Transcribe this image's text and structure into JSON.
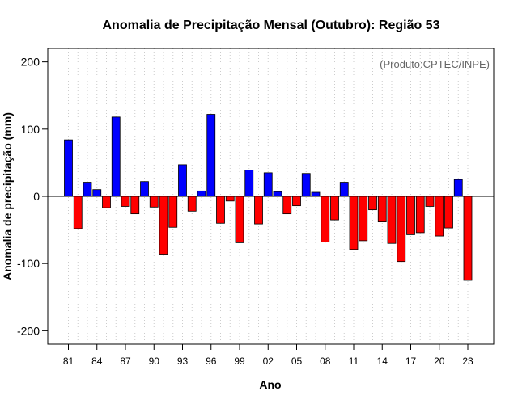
{
  "chart_data": {
    "type": "bar",
    "title": "Anomalia de Precipitação Mensal (Outubro): Região 53",
    "xlabel": "Ano",
    "ylabel": "Anomalia de precipitação (mm)",
    "credit": "(Produto:CPTEC/INPE)",
    "ylim": [
      -220,
      220
    ],
    "yticks": [
      200,
      100,
      0,
      -100,
      -200
    ],
    "xtick_labels": [
      "81",
      "84",
      "87",
      "90",
      "93",
      "96",
      "99",
      "02",
      "05",
      "08",
      "11",
      "14",
      "17",
      "20",
      "23"
    ],
    "grid": "vertical dotted",
    "years": [
      1981,
      1982,
      1983,
      1984,
      1985,
      1986,
      1987,
      1988,
      1989,
      1990,
      1991,
      1992,
      1993,
      1994,
      1995,
      1996,
      1997,
      1998,
      1999,
      2000,
      2001,
      2002,
      2003,
      2004,
      2005,
      2006,
      2007,
      2008,
      2009,
      2010,
      2011,
      2012,
      2013,
      2014,
      2015,
      2016,
      2017,
      2018,
      2019,
      2020,
      2021,
      2022,
      2023
    ],
    "values": [
      84,
      -48,
      21,
      10,
      -17,
      118,
      -15,
      -26,
      22,
      -16,
      -86,
      -46,
      47,
      -22,
      8,
      122,
      -40,
      -7,
      -69,
      39,
      -41,
      35,
      7,
      -26,
      -14,
      34,
      6,
      -68,
      -35,
      21,
      -79,
      -66,
      -20,
      -38,
      -70,
      -97,
      -57,
      -54,
      -15,
      -59,
      -47,
      25,
      -125
    ],
    "colors": {
      "positive": "#0000ff",
      "negative": "#ff0000",
      "bar_border": "#000000",
      "grid": "#cccccc",
      "frame": "#000000"
    }
  }
}
